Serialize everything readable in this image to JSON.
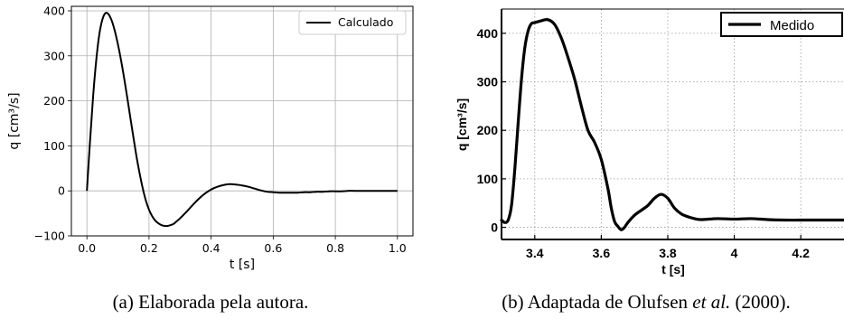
{
  "chart_data": [
    {
      "type": "line",
      "xlabel": "t [s]",
      "ylabel": "q [cm³/s]",
      "xlim": [
        -0.05,
        1.05
      ],
      "ylim": [
        -100,
        410
      ],
      "xticks": [
        0.0,
        0.2,
        0.4,
        0.6,
        0.8,
        1.0
      ],
      "xtick_labels": [
        "0.0",
        "0.2",
        "0.4",
        "0.6",
        "0.8",
        "1.0"
      ],
      "yticks": [
        -100,
        0,
        100,
        200,
        300,
        400
      ],
      "ytick_labels": [
        "−100",
        "0",
        "100",
        "200",
        "300",
        "400"
      ],
      "grid": true,
      "legend_position": "top-right",
      "series": [
        {
          "name": "Calculado",
          "color": "#000000",
          "x": [
            0.0,
            0.01,
            0.02,
            0.03,
            0.04,
            0.05,
            0.06,
            0.07,
            0.08,
            0.09,
            0.1,
            0.11,
            0.12,
            0.13,
            0.14,
            0.15,
            0.16,
            0.17,
            0.18,
            0.19,
            0.2,
            0.21,
            0.22,
            0.23,
            0.24,
            0.25,
            0.26,
            0.27,
            0.28,
            0.29,
            0.3,
            0.32,
            0.34,
            0.36,
            0.38,
            0.4,
            0.42,
            0.44,
            0.46,
            0.48,
            0.5,
            0.52,
            0.54,
            0.56,
            0.58,
            0.6,
            0.62,
            0.64,
            0.66,
            0.68,
            0.7,
            0.72,
            0.74,
            0.76,
            0.78,
            0.8,
            0.82,
            0.84,
            0.86,
            0.88,
            0.9,
            0.92,
            0.94,
            0.96,
            0.98,
            1.0
          ],
          "y": [
            0,
            110,
            210,
            290,
            348,
            381,
            395,
            392,
            378,
            355,
            325,
            290,
            250,
            207,
            162,
            118,
            75,
            38,
            5,
            -22,
            -42,
            -56,
            -66,
            -72,
            -76,
            -78,
            -78,
            -76,
            -73,
            -67,
            -61,
            -47,
            -32,
            -18,
            -6,
            3,
            9,
            13,
            15,
            14,
            12,
            9,
            5,
            1,
            -2,
            -3,
            -4,
            -4,
            -4,
            -4,
            -3,
            -3,
            -2,
            -2,
            -1,
            -1,
            -1,
            0,
            0,
            0,
            0,
            0,
            0,
            0,
            0,
            0
          ]
        }
      ],
      "caption": "(a) Elaborada pela autora."
    },
    {
      "type": "line",
      "xlabel": "t [s]",
      "ylabel": "q [cm³/s]",
      "xlim": [
        3.3,
        4.33
      ],
      "ylim": [
        -25,
        450
      ],
      "xticks": [
        3.4,
        3.6,
        3.8,
        4.0,
        4.2
      ],
      "xtick_labels": [
        "3.4",
        "3.6",
        "3.8",
        "4",
        "4.2"
      ],
      "yticks": [
        0,
        100,
        200,
        300,
        400
      ],
      "ytick_labels": [
        "0",
        "100",
        "200",
        "300",
        "400"
      ],
      "grid": true,
      "legend_position": "top-right",
      "series": [
        {
          "name": "Medido",
          "color": "#000000",
          "x": [
            3.3,
            3.31,
            3.32,
            3.33,
            3.34,
            3.35,
            3.36,
            3.37,
            3.38,
            3.39,
            3.4,
            3.42,
            3.44,
            3.46,
            3.48,
            3.5,
            3.52,
            3.54,
            3.56,
            3.58,
            3.6,
            3.62,
            3.63,
            3.64,
            3.65,
            3.66,
            3.67,
            3.68,
            3.7,
            3.72,
            3.74,
            3.76,
            3.78,
            3.8,
            3.82,
            3.84,
            3.86,
            3.88,
            3.9,
            3.95,
            4.0,
            4.05,
            4.1,
            4.15,
            4.2,
            4.25,
            4.33
          ],
          "y": [
            15,
            10,
            15,
            45,
            120,
            215,
            305,
            370,
            405,
            420,
            422,
            426,
            428,
            418,
            390,
            350,
            305,
            250,
            200,
            175,
            140,
            80,
            40,
            12,
            2,
            -5,
            0,
            10,
            25,
            35,
            45,
            60,
            68,
            60,
            40,
            28,
            22,
            18,
            16,
            18,
            17,
            18,
            16,
            15,
            15,
            15,
            15
          ]
        }
      ],
      "caption_prefix": "(b) Adaptada de Olufsen ",
      "caption_italic": "et al.",
      "caption_suffix": " (2000)."
    }
  ]
}
